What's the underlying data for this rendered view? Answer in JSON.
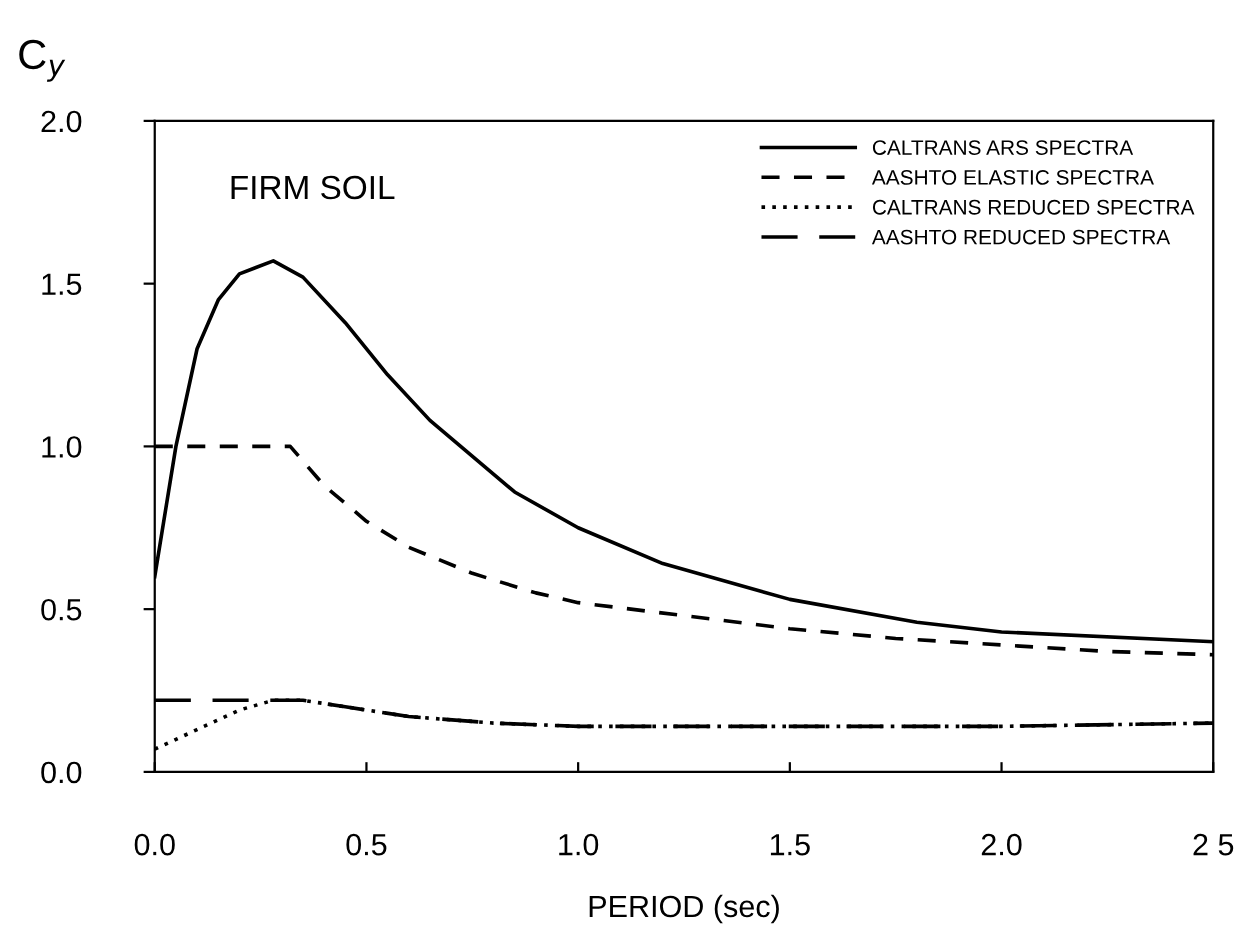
{
  "chart_data": {
    "type": "line",
    "xlabel": "PERIOD (sec)",
    "ylabel": "C$_{y}$",
    "annotations": [
      "FIRM SOIL"
    ],
    "xlim": [
      0,
      2.5
    ],
    "ylim": [
      0,
      2.0
    ],
    "xticks": [
      {
        "value": 0,
        "label": "0.0"
      },
      0.5,
      {
        "value": 1,
        "label": "1.0"
      },
      1.5,
      {
        "value": 2,
        "label": "2.0"
      },
      {
        "value": 2.5,
        "label": "2 5"
      }
    ],
    "yticks": [
      {
        "value": 0,
        "label": "0.0"
      },
      0.5,
      {
        "value": 1,
        "label": "1.0"
      },
      1.5,
      {
        "value": 2,
        "label": "2.0"
      }
    ],
    "grid": false,
    "legend": "top right",
    "marker": "none",
    "series": [
      {
        "name": "CALTRANS ARS SPECTRA",
        "color": "#000000",
        "line_style": "solid",
        "x": [
          0,
          0.05,
          0.1,
          0.15,
          0.2,
          0.28,
          0.35,
          0.45,
          0.55,
          0.65,
          0.85,
          1.0,
          1.2,
          1.5,
          1.8,
          2.0,
          2.5
        ],
        "values": [
          0.6,
          1.0,
          1.3,
          1.45,
          1.53,
          1.57,
          1.52,
          1.38,
          1.22,
          1.08,
          0.86,
          0.75,
          0.64,
          0.53,
          0.46,
          0.43,
          0.4
        ]
      },
      {
        "name": "AASHTO ELASTIC SPECTRA",
        "color": "#000000",
        "line_style": "dashed",
        "x": [
          0,
          0.32,
          0.4,
          0.5,
          0.6,
          0.75,
          0.9,
          1.0,
          1.25,
          1.5,
          1.75,
          2.0,
          2.25,
          2.5
        ],
        "values": [
          1.0,
          1.0,
          0.88,
          0.77,
          0.69,
          0.61,
          0.55,
          0.52,
          0.48,
          0.44,
          0.41,
          0.39,
          0.37,
          0.36
        ]
      },
      {
        "name": "CALTRANS REDUCED SPECTRA",
        "color": "#000000",
        "line_style": "dotted",
        "x": [
          0,
          0.1,
          0.2,
          0.28,
          0.35,
          0.45,
          0.6,
          0.8,
          1.0,
          1.5,
          2.0,
          2.5
        ],
        "values": [
          0.07,
          0.13,
          0.19,
          0.22,
          0.22,
          0.2,
          0.17,
          0.15,
          0.14,
          0.14,
          0.14,
          0.15
        ]
      },
      {
        "name": "AASHTO REDUCED SPECTRA",
        "color": "#000000",
        "line_style": "longdash",
        "x": [
          0,
          0.25,
          0.3,
          0.35,
          0.45,
          0.6,
          0.8,
          1.0,
          1.5,
          2.0,
          2.5
        ],
        "values": [
          0.22,
          0.22,
          0.22,
          0.22,
          0.2,
          0.17,
          0.15,
          0.14,
          0.14,
          0.14,
          0.15
        ]
      }
    ]
  }
}
